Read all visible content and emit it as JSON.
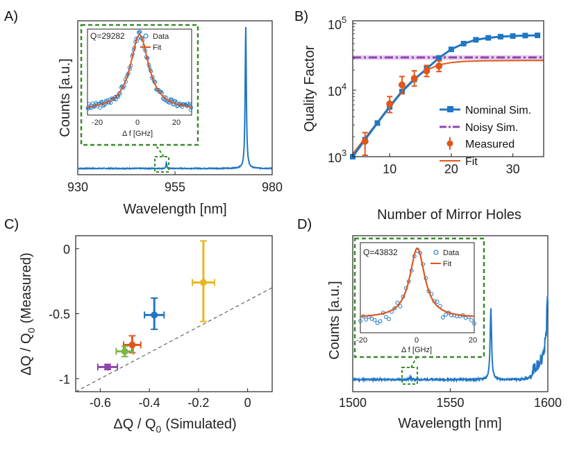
{
  "colors": {
    "blue": "#1f77c4",
    "orange": "#e0561b",
    "purple": "#8e44ad",
    "lavender": "#d9b8e8",
    "green": "#3a8a2a",
    "yellow": "#e8b523",
    "limegreen": "#7ab648",
    "axis": "#222222"
  },
  "chart_data": [
    {
      "panel": "A)",
      "type": "line",
      "xlabel": "Wavelength [nm]",
      "ylabel": "Counts [a.u.]",
      "xlim": [
        930,
        980
      ],
      "xticks": [
        "930",
        "955",
        "980"
      ],
      "peaks": [
        {
          "x": 952.8,
          "height": 0.04
        },
        {
          "x": 973.2,
          "height": 1.0
        }
      ],
      "inset": {
        "q_label": "Q=29282",
        "xlabel": "Δ f [GHz]",
        "xticks": [
          "-20",
          "0",
          "20"
        ],
        "legend": [
          "Data",
          "Fit"
        ]
      }
    },
    {
      "panel": "B)",
      "type": "line",
      "xlabel": "Number of Mirror Holes",
      "ylabel": "Quality Factor",
      "yscale": "log",
      "xlim": [
        4,
        35
      ],
      "ylim": [
        1000,
        100000
      ],
      "xticks": [
        "10",
        "20",
        "30"
      ],
      "yticks": [
        {
          "base": "10",
          "exp": "3"
        },
        {
          "base": "10",
          "exp": "4"
        },
        {
          "base": "10",
          "exp": "5"
        }
      ],
      "series": [
        {
          "name": "Nominal Sim.",
          "x": [
            4,
            6,
            8,
            10,
            12,
            14,
            16,
            18,
            20,
            22,
            24,
            26,
            28,
            30,
            32,
            34
          ],
          "y": [
            1000,
            1800,
            3200,
            5600,
            9500,
            14500,
            21000,
            30500,
            41000,
            50000,
            57000,
            61000,
            63500,
            65000,
            66000,
            66500
          ]
        },
        {
          "name": "Noisy Sim.",
          "y_const": 31000,
          "band": [
            28500,
            33500
          ]
        },
        {
          "name": "Measured",
          "x": [
            6,
            10,
            12,
            14,
            16,
            18
          ],
          "y": [
            1700,
            6200,
            12000,
            15000,
            19500,
            23000
          ],
          "err_low": [
            1050,
            4600,
            8800,
            11500,
            16000,
            19000
          ],
          "err_high": [
            2300,
            8000,
            16000,
            19500,
            23500,
            27500
          ]
        },
        {
          "name": "Fit",
          "x": [
            4,
            6,
            8,
            10,
            12,
            14,
            16,
            18,
            20,
            22,
            25,
            30,
            35
          ],
          "y": [
            1100,
            1900,
            3300,
            5800,
            9800,
            15000,
            20000,
            24000,
            26000,
            27000,
            27500,
            27800,
            27900
          ]
        }
      ]
    },
    {
      "panel": "C)",
      "type": "scatter",
      "xlabel_main": "ΔQ / Q",
      "xlabel_sub": "0",
      "xlabel_tail": "(Simulated)",
      "ylabel_main": "ΔQ / Q",
      "ylabel_sub": "0",
      "ylabel_tail": "(Measured)",
      "xlim": [
        -0.7,
        0.1
      ],
      "ylim": [
        -1.1,
        0.1
      ],
      "xticks": [
        "-0.6",
        "-0.4",
        "-0.2",
        "0"
      ],
      "yticks": [
        "0",
        "-0.5",
        "-1"
      ],
      "points": [
        {
          "x": -0.18,
          "y": -0.26,
          "xerr": 0.045,
          "yerr_low": 0.3,
          "yerr_high": 0.32,
          "color": "#e8b523"
        },
        {
          "x": -0.38,
          "y": -0.51,
          "xerr": 0.04,
          "yerr_low": 0.11,
          "yerr_high": 0.13,
          "color": "#1f77c4"
        },
        {
          "x": -0.47,
          "y": -0.74,
          "xerr": 0.035,
          "yerr_low": 0.06,
          "yerr_high": 0.07,
          "color": "#e0561b"
        },
        {
          "x": -0.5,
          "y": -0.79,
          "xerr": 0.035,
          "yerr_low": 0.04,
          "yerr_high": 0.04,
          "color": "#7ab648"
        },
        {
          "x": -0.57,
          "y": -0.91,
          "xerr": 0.04,
          "yerr_low": 0.02,
          "yerr_high": 0.02,
          "color": "#8e44ad"
        }
      ]
    },
    {
      "panel": "D)",
      "type": "line",
      "xlabel": "Wavelength [nm]",
      "ylabel": "Counts [a.u.]",
      "xlim": [
        1500,
        1600
      ],
      "xticks": [
        "1500",
        "1550",
        "1600"
      ],
      "inset": {
        "q_label": "Q=43832",
        "xlabel": "Δ f [GHz]",
        "xticks": [
          "-20",
          "0",
          "20"
        ],
        "legend": [
          "Data",
          "Fit"
        ]
      }
    }
  ]
}
